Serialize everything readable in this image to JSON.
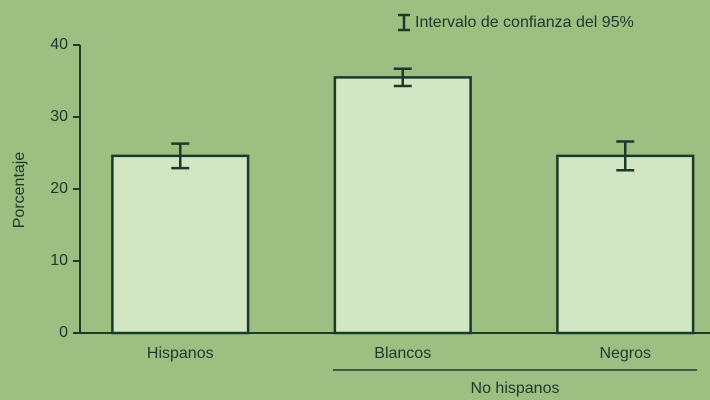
{
  "chart_data": {
    "type": "bar",
    "y_label": "Porcentaje",
    "legend_label": "Intervalo de confianza del 95%",
    "group_label": "No hispanos",
    "categories": [
      "Hispanos",
      "Blancos",
      "Negros"
    ],
    "values": [
      24.6,
      35.5,
      24.6
    ],
    "errors": [
      1.7,
      1.2,
      2.0
    ],
    "color": "#d3e6c3",
    "edge_color": "#1a3a2a",
    "ylim": [
      0,
      40
    ],
    "yticks": [
      0,
      10,
      20,
      30,
      40
    ],
    "grid": false
  }
}
